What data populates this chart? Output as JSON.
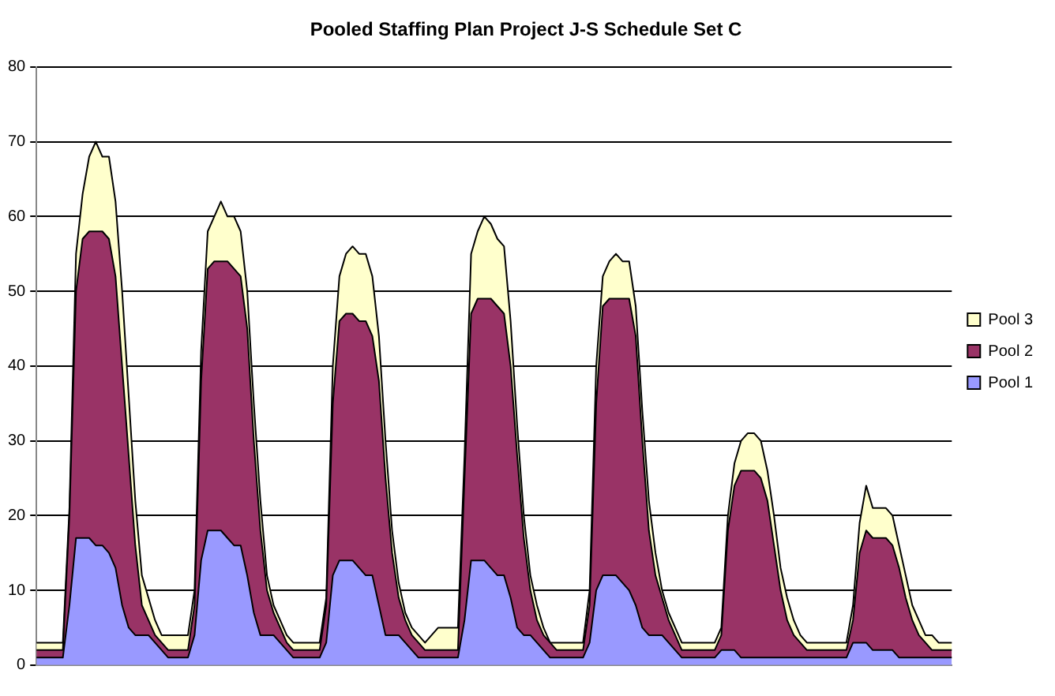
{
  "chart_data": {
    "type": "area",
    "stacked": true,
    "title": "Pooled Staffing Plan Project J-S Schedule Set C",
    "categories": [
      null,
      null,
      null,
      null,
      null,
      null,
      null,
      null,
      null,
      null,
      null,
      null,
      null,
      null,
      null,
      null,
      null,
      null,
      null,
      null,
      null,
      null,
      null,
      null,
      null,
      null,
      null,
      null,
      null,
      null,
      null,
      null,
      null,
      null,
      null,
      null,
      null,
      null,
      null,
      null,
      null,
      null,
      null,
      null,
      null,
      null,
      null,
      null,
      null,
      null,
      null,
      null,
      null,
      null,
      null,
      null,
      null,
      null,
      null,
      null,
      null,
      null,
      null,
      null,
      null,
      null,
      null,
      null,
      null,
      null,
      null,
      null,
      null,
      null,
      null,
      null,
      null,
      null,
      null,
      null,
      null,
      null,
      null,
      null,
      null,
      null,
      null,
      null,
      null,
      null,
      null,
      null,
      null,
      null,
      null,
      null,
      null,
      null,
      null,
      null,
      null,
      null,
      null,
      null,
      null,
      null,
      null,
      null,
      null,
      null,
      null,
      null,
      null,
      null,
      null,
      null,
      null,
      null,
      null,
      null,
      null,
      null,
      null,
      null,
      null,
      null,
      null,
      null,
      null,
      null,
      null,
      null,
      null,
      null,
      null,
      null,
      null,
      null,
      null,
      null
    ],
    "series": [
      {
        "name": "Pool 1",
        "color": "#9999ff",
        "values": [
          1,
          1,
          1,
          1,
          1,
          8,
          17,
          17,
          17,
          16,
          16,
          15,
          13,
          8,
          5,
          4,
          4,
          4,
          3,
          2,
          1,
          1,
          1,
          1,
          4,
          14,
          18,
          18,
          18,
          17,
          16,
          16,
          12,
          7,
          4,
          4,
          4,
          3,
          2,
          1,
          1,
          1,
          1,
          1,
          3,
          12,
          14,
          14,
          14,
          13,
          12,
          12,
          8,
          4,
          4,
          4,
          3,
          2,
          1,
          1,
          1,
          1,
          1,
          1,
          1,
          6,
          14,
          14,
          14,
          13,
          12,
          12,
          9,
          5,
          4,
          4,
          3,
          2,
          1,
          1,
          1,
          1,
          1,
          1,
          3,
          10,
          12,
          12,
          12,
          11,
          10,
          8,
          5,
          4,
          4,
          4,
          3,
          2,
          1,
          1,
          1,
          1,
          1,
          1,
          2,
          2,
          2,
          1,
          1,
          1,
          1,
          1,
          1,
          1,
          1,
          1,
          1,
          1,
          1,
          1,
          1,
          1,
          1,
          1,
          3,
          3,
          3,
          2,
          2,
          2,
          2,
          1,
          1,
          1,
          1,
          1,
          1,
          1,
          1,
          1
        ]
      },
      {
        "name": "Pool 2",
        "color": "#993366",
        "values": [
          1,
          1,
          1,
          1,
          1,
          12,
          33,
          40,
          41,
          42,
          42,
          42,
          39,
          32,
          23,
          12,
          4,
          2,
          1,
          1,
          1,
          1,
          1,
          1,
          4,
          24,
          35,
          36,
          36,
          37,
          37,
          36,
          33,
          23,
          14,
          6,
          3,
          2,
          1,
          1,
          1,
          1,
          1,
          1,
          5,
          23,
          32,
          33,
          33,
          33,
          34,
          32,
          30,
          21,
          11,
          5,
          3,
          2,
          2,
          1,
          1,
          1,
          1,
          1,
          1,
          19,
          33,
          35,
          35,
          36,
          36,
          35,
          31,
          23,
          13,
          6,
          3,
          2,
          2,
          1,
          1,
          1,
          1,
          1,
          5,
          25,
          36,
          37,
          37,
          38,
          39,
          36,
          25,
          14,
          8,
          5,
          3,
          2,
          1,
          1,
          1,
          1,
          1,
          1,
          2,
          16,
          22,
          25,
          25,
          25,
          24,
          21,
          15,
          9,
          5,
          3,
          2,
          1,
          1,
          1,
          1,
          1,
          1,
          1,
          3,
          12,
          15,
          15,
          15,
          15,
          14,
          12,
          8,
          5,
          3,
          2,
          1,
          1,
          1,
          1
        ]
      },
      {
        "name": "Pool 3",
        "color": "#ffffcc",
        "values": [
          1,
          1,
          1,
          1,
          1,
          1,
          5,
          6,
          10,
          12,
          10,
          11,
          10,
          10,
          8,
          6,
          4,
          3,
          2,
          1,
          2,
          2,
          2,
          2,
          2,
          4,
          5,
          6,
          8,
          6,
          7,
          6,
          5,
          5,
          4,
          2,
          1,
          1,
          1,
          1,
          1,
          1,
          1,
          1,
          1,
          5,
          6,
          8,
          9,
          9,
          9,
          8,
          6,
          5,
          3,
          2,
          1,
          1,
          1,
          1,
          2,
          3,
          3,
          3,
          3,
          3,
          8,
          9,
          11,
          10,
          9,
          9,
          6,
          4,
          3,
          2,
          2,
          1,
          0,
          1,
          1,
          1,
          1,
          1,
          2,
          5,
          4,
          5,
          6,
          5,
          5,
          4,
          4,
          4,
          3,
          1,
          1,
          1,
          1,
          1,
          1,
          1,
          1,
          1,
          1,
          2,
          3,
          4,
          5,
          5,
          5,
          4,
          4,
          3,
          3,
          2,
          1,
          1,
          1,
          1,
          1,
          1,
          1,
          1,
          2,
          4,
          6,
          4,
          4,
          4,
          4,
          3,
          3,
          2,
          2,
          1,
          2,
          1,
          1,
          1
        ]
      }
    ],
    "ylim": [
      0,
      80
    ],
    "yticks": [
      0,
      10,
      20,
      30,
      40,
      50,
      60,
      70,
      80
    ],
    "grid": "y",
    "legend": "right",
    "marker": "none"
  }
}
